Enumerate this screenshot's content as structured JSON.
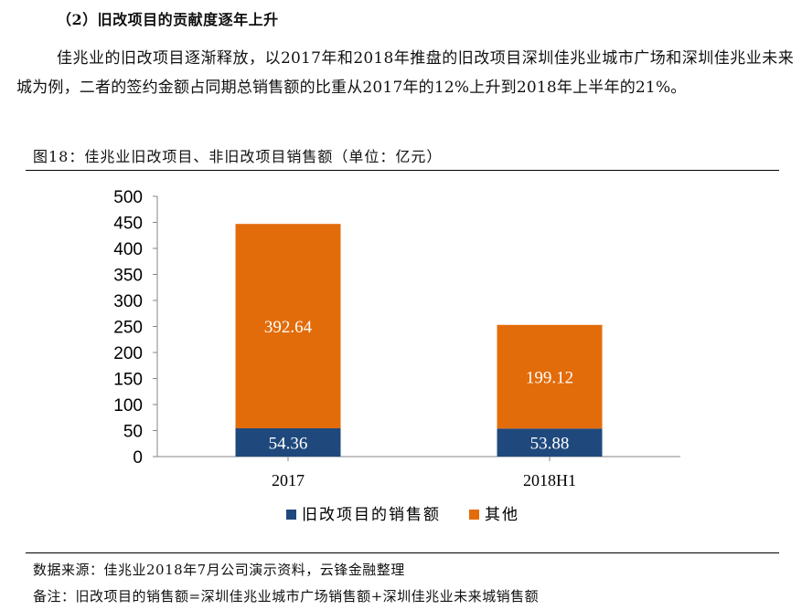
{
  "section": {
    "title": "（2）旧改项目的贡献度逐年上升"
  },
  "paragraph": "佳兆业的旧改项目逐渐释放，以2017年和2018年推盘的旧改项目深圳佳兆业城市广场和深圳佳兆业未来城为例，二者的签约金额占同期总销售额的比重从2017年的12%上升到2018年上半年的21%。",
  "figure": {
    "title": "图18：佳兆业旧改项目、非旧改项目销售额（单位：亿元）"
  },
  "chart_data": {
    "type": "bar",
    "stacked": true,
    "categories": [
      "2017",
      "2018H1"
    ],
    "series": [
      {
        "name": "旧改项目的销售额",
        "values": [
          54.36,
          53.88
        ],
        "color": "#1F497D"
      },
      {
        "name": "其他",
        "values": [
          392.64,
          199.12
        ],
        "color": "#E36C0A"
      }
    ],
    "data_labels": [
      [
        "54.36",
        "53.88"
      ],
      [
        "392.64",
        "199.12"
      ]
    ],
    "ylim": [
      0,
      500
    ],
    "yticks": [
      0,
      50,
      100,
      150,
      200,
      250,
      300,
      350,
      400,
      450,
      500
    ],
    "ytick_labels": [
      "0",
      "50",
      "100",
      "150",
      "200",
      "250",
      "300",
      "350",
      "400",
      "450",
      "500"
    ],
    "grid": false,
    "legend_position": "bottom"
  },
  "footer": {
    "source": "数据来源：佳兆业2018年7月公司演示资料，云锋金融整理",
    "note": "备注：旧改项目的销售额=深圳佳兆业城市广场销售额+深圳佳兆业未来城销售额"
  }
}
